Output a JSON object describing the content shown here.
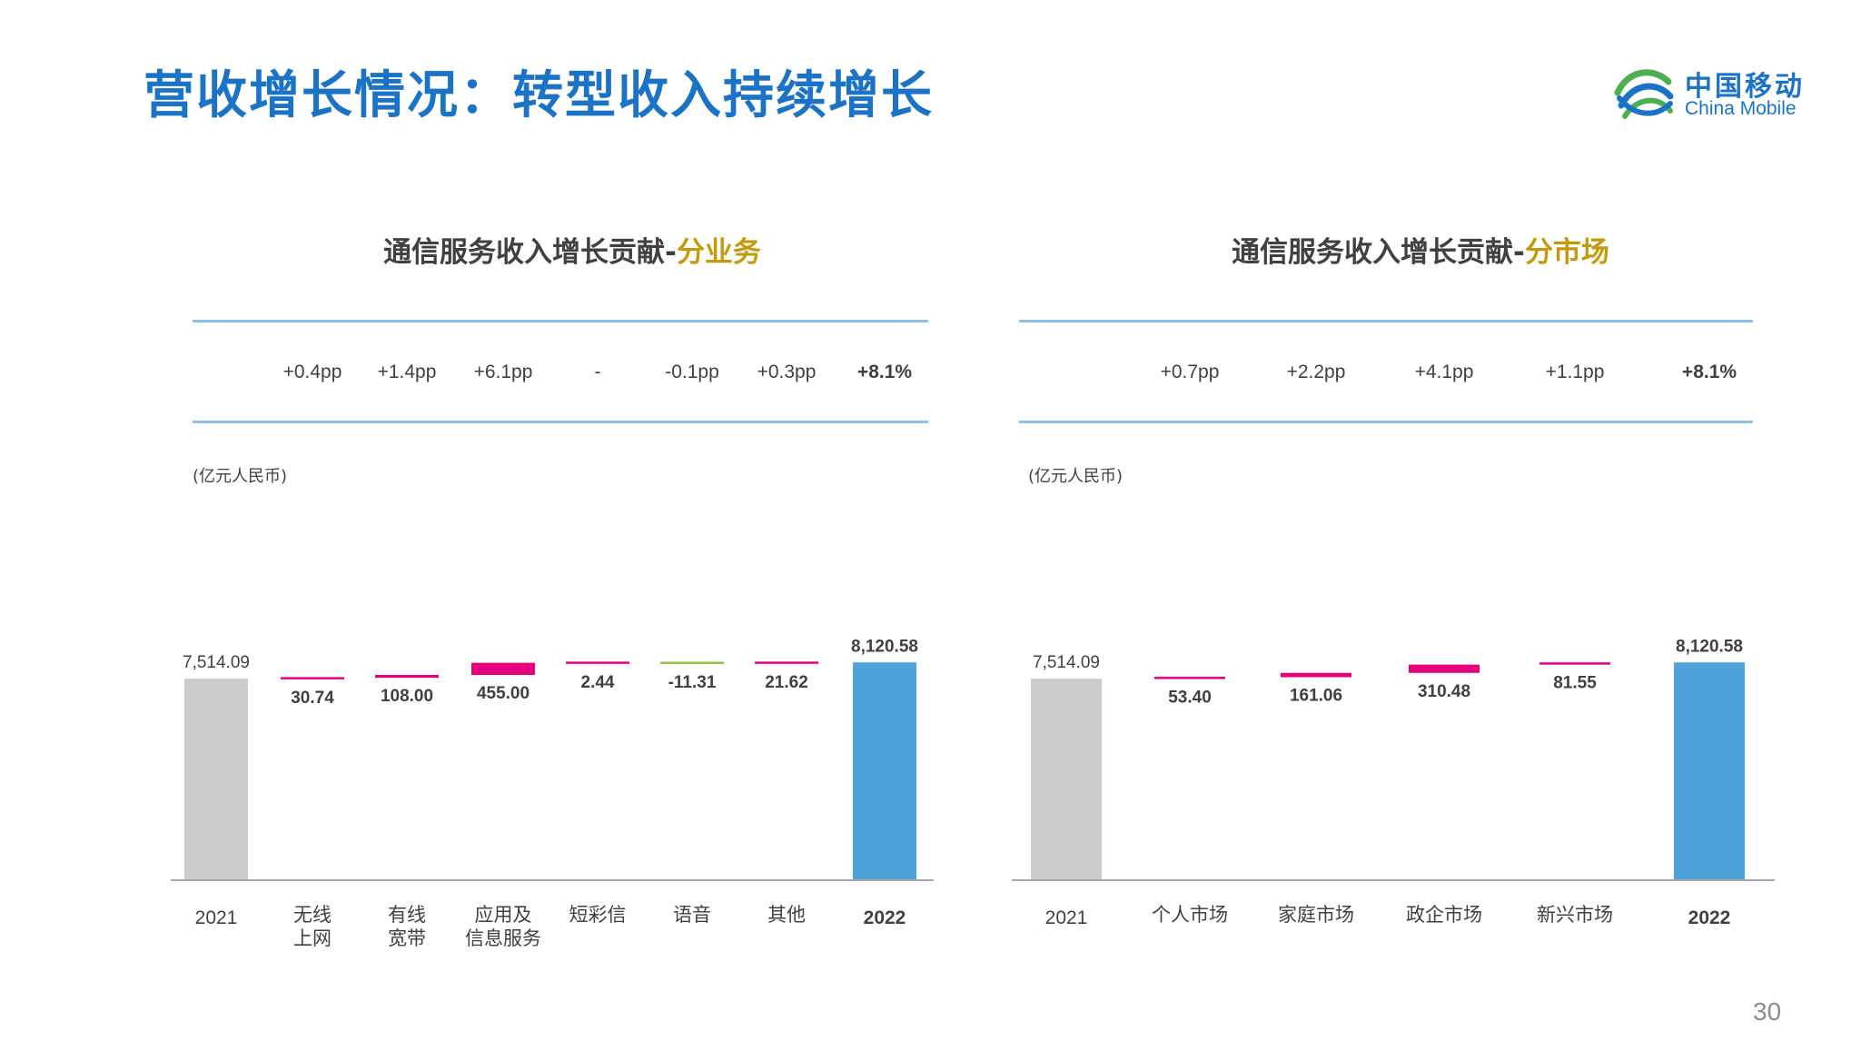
{
  "slide": {
    "title": "营收增长情况：转型收入持续增长",
    "logo_cn": "中国移动",
    "logo_en": "China Mobile",
    "page_number": "30"
  },
  "colors": {
    "title_blue": "#1a73c7",
    "highlight_gold": "#c39a0c",
    "bar_2021": "#cccccc",
    "bar_2022": "#4da3d9",
    "bar_positive": "#e6007e",
    "bar_negative": "#8dc63f",
    "rule_line": "#8dbee3"
  },
  "panels": [
    {
      "title_main": "通信服务收入增长贡献-",
      "title_highlight": "分业务",
      "unit_label": "(亿元人民币)",
      "growth_labels": [
        "",
        "+0.4pp",
        "+1.4pp",
        "+6.1pp",
        "-",
        "-0.1pp",
        "+0.3pp",
        "+8.1%"
      ],
      "category_labels": [
        "2021",
        "无线\n上网",
        "有线\n宽带",
        "应用及\n信息服务",
        "短彩信",
        "语音",
        "其他",
        "2022"
      ]
    },
    {
      "title_main": "通信服务收入增长贡献-",
      "title_highlight": "分市场",
      "unit_label": "(亿元人民币)",
      "growth_labels": [
        "",
        "+0.7pp",
        "+2.2pp",
        "+4.1pp",
        "+1.1pp",
        "+8.1%"
      ],
      "category_labels": [
        "2021",
        "个人市场",
        "家庭市场",
        "政企市场",
        "新兴市场",
        "2022"
      ]
    }
  ],
  "chart_data": [
    {
      "type": "bar",
      "title": "通信服务收入增长贡献-分业务",
      "ylabel": "(亿元人民币)",
      "categories": [
        "2021",
        "无线上网",
        "有线宽带",
        "应用及信息服务",
        "短彩信",
        "语音",
        "其他",
        "2022"
      ],
      "values": [
        7514.09,
        30.74,
        108.0,
        455.0,
        2.44,
        -11.31,
        21.62,
        8120.58
      ],
      "value_labels": [
        "7,514.09",
        "30.74",
        "108.00",
        "455.00",
        "2.44",
        "-11.31",
        "21.62",
        "8,120.58"
      ],
      "kinds": [
        "total",
        "delta",
        "delta",
        "delta",
        "delta",
        "delta",
        "delta",
        "total"
      ],
      "annotations": [
        "",
        "+0.4pp",
        "+1.4pp",
        "+6.1pp",
        "-",
        "-0.1pp",
        "+0.3pp",
        "+8.1%"
      ]
    },
    {
      "type": "bar",
      "title": "通信服务收入增长贡献-分市场",
      "ylabel": "(亿元人民币)",
      "categories": [
        "2021",
        "个人市场",
        "家庭市场",
        "政企市场",
        "新兴市场",
        "2022"
      ],
      "values": [
        7514.09,
        53.4,
        161.06,
        310.48,
        81.55,
        8120.58
      ],
      "value_labels": [
        "7,514.09",
        "53.40",
        "161.06",
        "310.48",
        "81.55",
        "8,120.58"
      ],
      "kinds": [
        "total",
        "delta",
        "delta",
        "delta",
        "delta",
        "total"
      ],
      "annotations": [
        "",
        "+0.7pp",
        "+2.2pp",
        "+4.1pp",
        "+1.1pp",
        "+8.1%"
      ]
    }
  ]
}
